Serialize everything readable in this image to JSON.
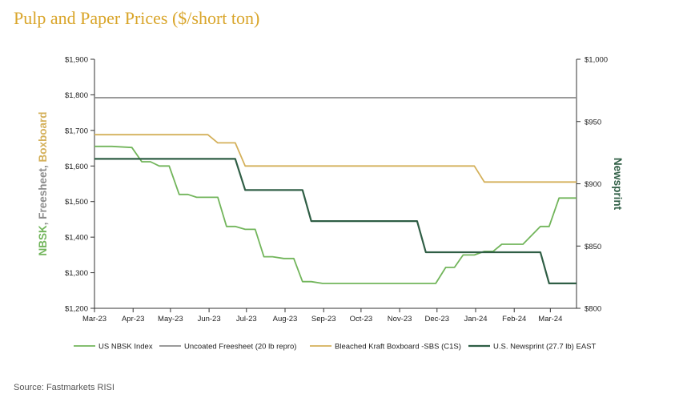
{
  "title": "Pulp and Paper Prices ($/short ton)",
  "source": "Source:  Fastmarkets RISI",
  "colors": {
    "title": "#d9a52a",
    "nbsk": "#72b55b",
    "freesheet": "#8c8c8c",
    "boxboard": "#d4b05a",
    "newsprint": "#2f5e45",
    "axis": "#333333"
  },
  "chart_data": {
    "type": "line",
    "x_ticks": [
      "Mar-23",
      "Apr-23",
      "May-23",
      "Jun-23",
      "Jul-23",
      "Aug-23",
      "Sep-23",
      "Oct-23",
      "Nov-23",
      "Dec-23",
      "Jan-24",
      "Feb-24",
      "Mar-24"
    ],
    "y_left": {
      "label_parts": [
        {
          "text": "NBSK",
          "color": "#72b55b"
        },
        {
          "text": ", Freesheet, ",
          "color": "#8c8c8c"
        },
        {
          "text": "Boxboard",
          "color": "#d4b05a"
        }
      ],
      "range": [
        1200,
        1900
      ],
      "ticks": [
        "$1,200",
        "$1,300",
        "$1,400",
        "$1,500",
        "$1,600",
        "$1,700",
        "$1,800",
        "$1,900"
      ]
    },
    "y_right": {
      "label": "Newsprint",
      "label_color": "#2f5e45",
      "range": [
        800,
        1000
      ],
      "ticks": [
        "$800",
        "$850",
        "$900",
        "$950",
        "$1,000"
      ]
    },
    "grid": false,
    "legend_position": "bottom",
    "series": [
      {
        "name": "US NBSK Index",
        "axis": "left",
        "color": "#72b55b",
        "x": [
          "2023-03-01",
          "2023-03-15",
          "2023-03-31",
          "2023-04-08",
          "2023-04-15",
          "2023-04-22",
          "2023-04-30",
          "2023-05-08",
          "2023-05-15",
          "2023-05-22",
          "2023-05-31",
          "2023-06-08",
          "2023-06-15",
          "2023-06-22",
          "2023-06-30",
          "2023-07-08",
          "2023-07-15",
          "2023-07-22",
          "2023-07-31",
          "2023-08-08",
          "2023-08-15",
          "2023-08-22",
          "2023-08-31",
          "2023-09-15",
          "2023-09-30",
          "2023-10-15",
          "2023-10-31",
          "2023-11-08",
          "2023-11-15",
          "2023-11-22",
          "2023-11-30",
          "2023-12-08",
          "2023-12-15",
          "2023-12-22",
          "2023-12-31",
          "2024-01-08",
          "2024-01-15",
          "2024-01-22",
          "2024-01-31",
          "2024-02-08",
          "2024-02-15",
          "2024-02-22",
          "2024-02-29",
          "2024-03-08",
          "2024-03-15",
          "2024-03-22"
        ],
        "values": [
          1655,
          1655,
          1652,
          1612,
          1612,
          1600,
          1600,
          1520,
          1520,
          1512,
          1512,
          1512,
          1430,
          1430,
          1422,
          1422,
          1345,
          1345,
          1340,
          1340,
          1275,
          1275,
          1270,
          1270,
          1270,
          1270,
          1270,
          1270,
          1270,
          1270,
          1270,
          1315,
          1315,
          1350,
          1350,
          1360,
          1360,
          1380,
          1380,
          1380,
          1405,
          1430,
          1430,
          1510,
          1510,
          1510
        ]
      },
      {
        "name": "Uncoated Freesheet (20 lb repro)",
        "axis": "left",
        "color": "#8c8c8c",
        "x": [
          "2023-03-01",
          "2024-03-22"
        ],
        "values": [
          1792,
          1792
        ]
      },
      {
        "name": "Bleached Kraft Boxboard -SBS (C1S)",
        "axis": "left",
        "color": "#d4b05a",
        "x": [
          "2023-03-01",
          "2023-05-31",
          "2023-06-08",
          "2023-06-22",
          "2023-06-30",
          "2023-07-15",
          "2023-08-31",
          "2023-09-30",
          "2023-10-31",
          "2023-11-30",
          "2023-12-31",
          "2024-01-08",
          "2024-01-15",
          "2024-01-31",
          "2024-02-29",
          "2024-03-22"
        ],
        "values": [
          1688,
          1688,
          1665,
          1665,
          1600,
          1600,
          1600,
          1600,
          1600,
          1600,
          1600,
          1555,
          1555,
          1555,
          1555,
          1555
        ]
      },
      {
        "name": "U.S. Newsprint (27.7 lb) EAST",
        "axis": "right",
        "color": "#2f5e45",
        "x": [
          "2023-03-01",
          "2023-06-22",
          "2023-06-30",
          "2023-08-15",
          "2023-08-22",
          "2023-09-30",
          "2023-10-31",
          "2023-11-15",
          "2023-11-22",
          "2023-12-31",
          "2024-01-31",
          "2024-02-22",
          "2024-02-29",
          "2024-03-22"
        ],
        "values": [
          920,
          920,
          895,
          895,
          870,
          870,
          870,
          870,
          845,
          845,
          845,
          845,
          820,
          820
        ]
      }
    ]
  }
}
